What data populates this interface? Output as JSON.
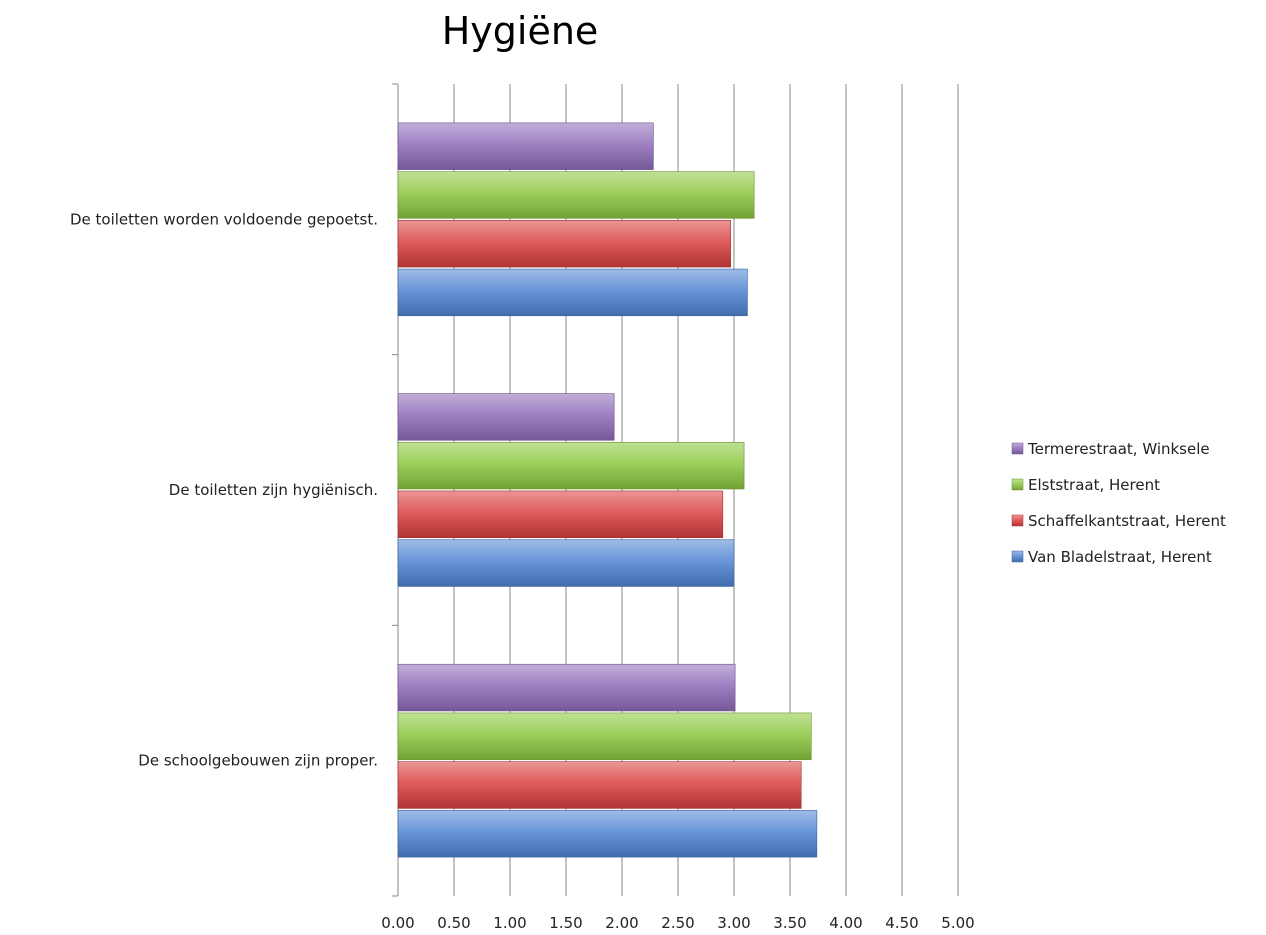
{
  "chart_data": {
    "type": "bar",
    "orientation": "horizontal",
    "title": "Hygiëne",
    "xlim": [
      0,
      5
    ],
    "x_ticks": [
      "0.00",
      "0.50",
      "1.00",
      "1.50",
      "2.00",
      "2.50",
      "3.00",
      "3.50",
      "4.00",
      "4.50",
      "5.00"
    ],
    "grid": true,
    "legend_position": "right",
    "categories": [
      "De toiletten worden voldoende gepoetst.",
      "De toiletten zijn hygiënisch.",
      "De schoolgebouwen zijn proper."
    ],
    "series": [
      {
        "name": "Termerestraat, Winksele",
        "color": "#8E6BB8",
        "values": [
          2.28,
          1.93,
          3.01
        ]
      },
      {
        "name": "Elststraat, Herent",
        "color": "#8CC63F",
        "values": [
          3.18,
          3.09,
          3.69
        ]
      },
      {
        "name": "Schaffelkantstraat, Herent",
        "color": "#D9403F",
        "values": [
          2.97,
          2.9,
          3.6
        ]
      },
      {
        "name": "Van Bladelstraat, Herent",
        "color": "#4F84D2",
        "values": [
          3.12,
          3.0,
          3.74
        ]
      }
    ]
  }
}
